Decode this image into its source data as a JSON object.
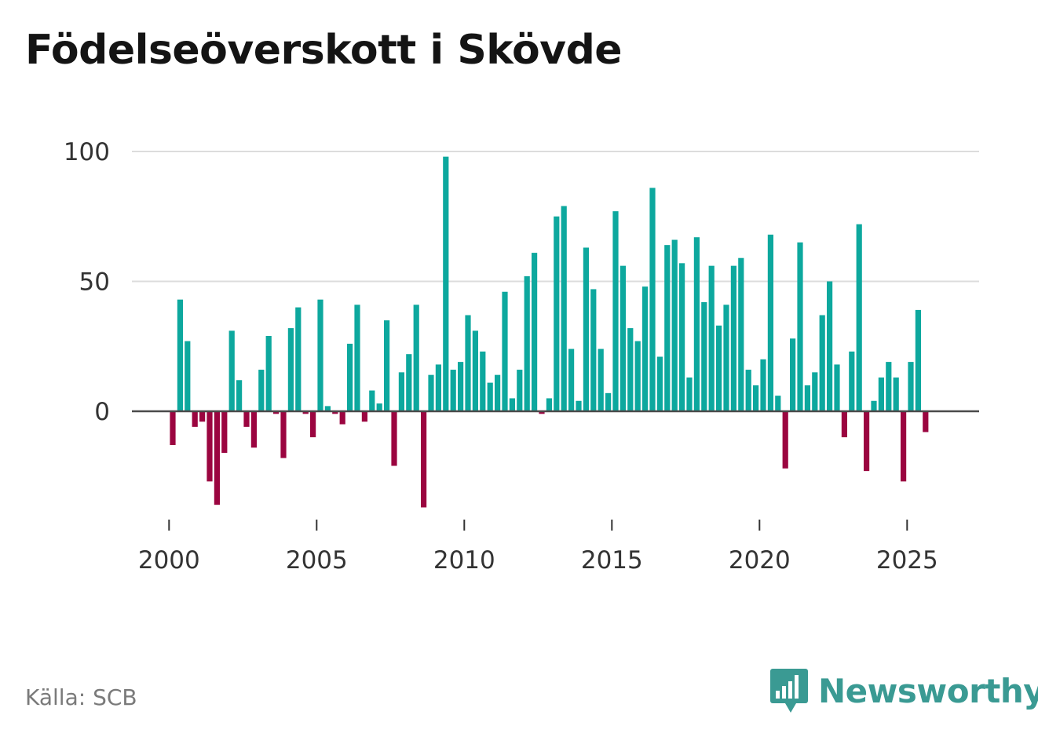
{
  "chart_data": {
    "type": "bar",
    "title": "Födelseöverskott i Skövde",
    "xlabel": "",
    "ylabel": "",
    "source": "Källa: SCB",
    "x_tick_labels": [
      "2000",
      "2005",
      "2010",
      "2015",
      "2020",
      "2025"
    ],
    "x_tick_years": [
      2000,
      2005,
      2010,
      2015,
      2020,
      2025
    ],
    "y_tick_labels": [
      "100",
      "50",
      "0"
    ],
    "y_tick_values": [
      100,
      50,
      0
    ],
    "ylim": [
      -40,
      100
    ],
    "grid": true,
    "start_year": 2000,
    "periods_per_year": 4,
    "positive_color": "#0da89e",
    "negative_color": "#9b0540",
    "series": [
      {
        "name": "Födelseöverskott",
        "values": [
          -13,
          43,
          27,
          -6,
          -4,
          -27,
          -36,
          -16,
          31,
          12,
          -6,
          -14,
          16,
          29,
          -1,
          -18,
          32,
          40,
          -1,
          -10,
          43,
          2,
          -1,
          -5,
          26,
          41,
          -4,
          8,
          3,
          35,
          -21,
          15,
          22,
          41,
          -37,
          14,
          18,
          98,
          16,
          19,
          37,
          31,
          23,
          11,
          14,
          46,
          5,
          16,
          52,
          61,
          -1,
          5,
          75,
          79,
          24,
          4,
          63,
          47,
          24,
          7,
          77,
          56,
          32,
          27,
          48,
          86,
          21,
          64,
          66,
          57,
          13,
          67,
          42,
          56,
          33,
          41,
          56,
          59,
          16,
          10,
          20,
          68,
          6,
          -22,
          28,
          65,
          10,
          15,
          37,
          50,
          18,
          -10,
          23,
          72,
          -23,
          4,
          13,
          19,
          13,
          -27,
          19,
          39,
          -8
        ]
      }
    ]
  },
  "branding": {
    "name": "Newsworthy",
    "icon": "newsworthy-logo-icon",
    "color": "#3a9a93"
  }
}
